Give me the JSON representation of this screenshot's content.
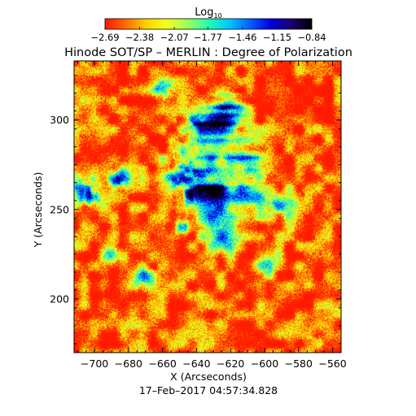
{
  "chart_data": {
    "type": "heatmap",
    "title": "Hinode SOT/SP – MERLIN : Degree of Polarization",
    "colorbar": {
      "label_base": "Log",
      "label_sub": "10",
      "ticks": [
        "-2.69",
        "-2.38",
        "-2.07",
        "-1.77",
        "-1.46",
        "-1.15",
        "-0.84"
      ],
      "range": [
        -2.69,
        -0.84
      ],
      "placement": "top",
      "colormap": [
        "#ff1a00",
        "#ff6a00",
        "#ffd200",
        "#f4ff1e",
        "#9cff5a",
        "#22ffb0",
        "#00c8ff",
        "#0060ff",
        "#0000e0",
        "#1a0070",
        "#000000"
      ]
    },
    "xlabel": "X (Arcseconds)",
    "ylabel": "Y (Arcseconds)",
    "xlim": [
      -712,
      -555
    ],
    "ylim": [
      170,
      333
    ],
    "xticks": [
      -700,
      -680,
      -660,
      -640,
      -620,
      -600,
      -580,
      -560
    ],
    "yticks": [
      200,
      250,
      300
    ],
    "features": [
      {
        "x": -627,
        "y": 262,
        "value": -0.95,
        "extent": 4
      },
      {
        "x": -628,
        "y": 290,
        "value": -1.2,
        "extent": 10
      },
      {
        "x": -622,
        "y": 307,
        "value": -1.35,
        "extent": 6
      },
      {
        "x": -645,
        "y": 268,
        "value": -1.45,
        "extent": 10
      },
      {
        "x": -638,
        "y": 262,
        "value": -1.4,
        "extent": 6
      },
      {
        "x": -612,
        "y": 258,
        "value": -1.4,
        "extent": 8
      },
      {
        "x": -630,
        "y": 247,
        "value": -1.55,
        "extent": 8
      },
      {
        "x": -625,
        "y": 232,
        "value": -1.6,
        "extent": 6
      },
      {
        "x": -608,
        "y": 278,
        "value": -1.6,
        "extent": 6
      },
      {
        "x": -705,
        "y": 260,
        "value": -1.5,
        "extent": 6
      },
      {
        "x": -685,
        "y": 268,
        "value": -1.5,
        "extent": 5
      },
      {
        "x": -660,
        "y": 318,
        "value": -1.45,
        "extent": 4
      },
      {
        "x": -585,
        "y": 253,
        "value": -1.55,
        "extent": 5
      },
      {
        "x": -595,
        "y": 255,
        "value": -1.6,
        "extent": 4
      },
      {
        "x": -650,
        "y": 240,
        "value": -1.5,
        "extent": 3
      },
      {
        "x": -690,
        "y": 225,
        "value": -1.7,
        "extent": 4
      },
      {
        "x": -670,
        "y": 212,
        "value": -1.8,
        "extent": 5
      },
      {
        "x": -600,
        "y": 220,
        "value": -1.8,
        "extent": 5
      },
      {
        "x": -640,
        "y": 300,
        "value": -1.75,
        "extent": 5
      }
    ],
    "background_value": -2.58,
    "grid": false
  },
  "footer": {
    "timestamp": "17–Feb–2017 04:57:34.828"
  }
}
